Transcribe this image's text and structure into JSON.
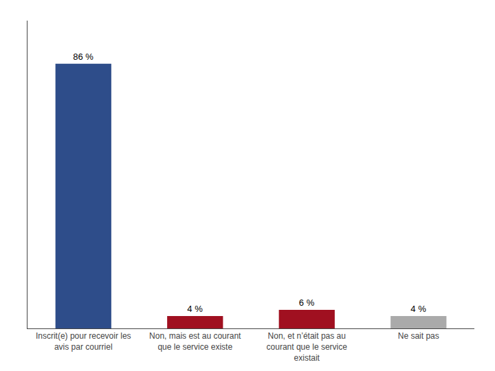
{
  "chart_data": {
    "type": "bar",
    "categories": [
      "Inscrit(e) pour recevoir les\navis par courriel",
      "Non, mais est au courant\nque le service existe",
      "Non, et n’était pas au\ncourant que le service\nexistait",
      "Ne sait pas"
    ],
    "values": [
      86,
      4,
      6,
      4
    ],
    "value_labels": [
      "86 %",
      "4 %",
      "6 %",
      "4 %"
    ],
    "colors": [
      "#2E4D8A",
      "#A01020",
      "#A01020",
      "#AAAAAA"
    ],
    "ylim": [
      0,
      100
    ],
    "data_labels": true,
    "tick_labels": "x",
    "grid": false
  }
}
